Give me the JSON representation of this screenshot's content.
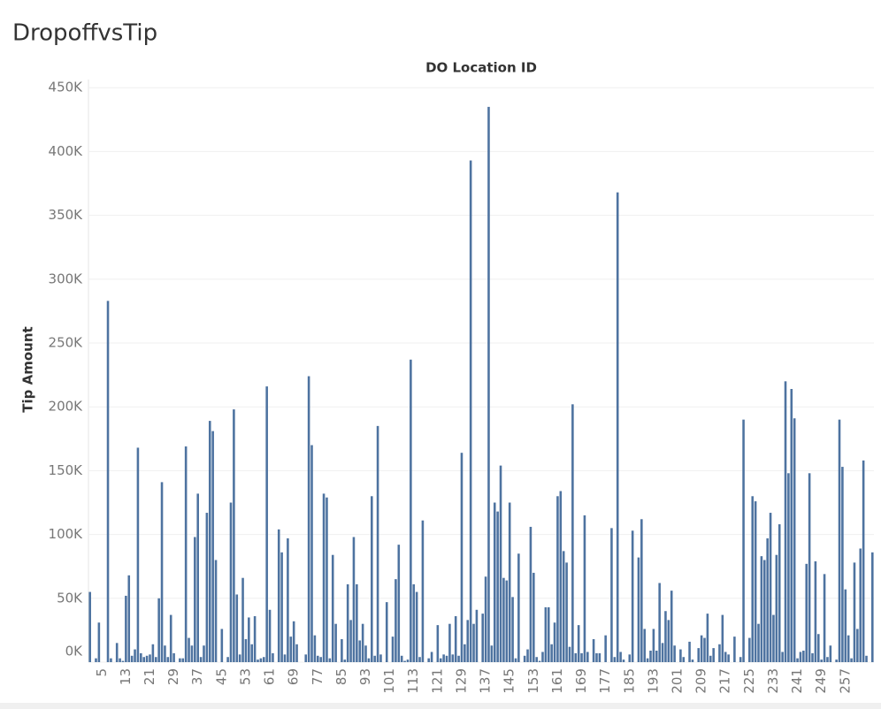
{
  "chart_data": {
    "type": "bar",
    "title": "DropoffvsTip",
    "x_label": "DO Location ID",
    "y_label": "Tip Amount",
    "color": "#4e73a0",
    "grid": true,
    "ylim": [
      0,
      455000
    ],
    "yticks": [
      {
        "value": 0,
        "label": "0K"
      },
      {
        "value": 50000,
        "label": "50K"
      },
      {
        "value": 100000,
        "label": "100K"
      },
      {
        "value": 150000,
        "label": "150K"
      },
      {
        "value": 200000,
        "label": "200K"
      },
      {
        "value": 250000,
        "label": "250K"
      },
      {
        "value": 300000,
        "label": "300K"
      },
      {
        "value": 350000,
        "label": "350K"
      },
      {
        "value": 400000,
        "label": "400K"
      },
      {
        "value": 450000,
        "label": "450K"
      }
    ],
    "categories": [
      null,
      null,
      null,
      null,
      "5",
      null,
      null,
      null,
      null,
      null,
      null,
      null,
      "13",
      null,
      null,
      null,
      null,
      null,
      null,
      null,
      "21",
      null,
      null,
      null,
      null,
      null,
      null,
      null,
      "29",
      null,
      null,
      null,
      null,
      null,
      null,
      null,
      "37",
      null,
      null,
      null,
      null,
      null,
      null,
      null,
      "45",
      null,
      null,
      null,
      null,
      null,
      null,
      null,
      "53",
      null,
      null,
      null,
      null,
      null,
      null,
      null,
      "61",
      null,
      null,
      null,
      null,
      null,
      null,
      null,
      "69",
      null,
      null,
      null,
      null,
      null,
      null,
      null,
      "77",
      null,
      null,
      null,
      null,
      null,
      null,
      null,
      "85",
      null,
      null,
      null,
      null,
      null,
      null,
      null,
      "93",
      null,
      null,
      null,
      null,
      null,
      null,
      null,
      "101",
      null,
      null,
      null,
      null,
      null,
      null,
      null,
      "113",
      null,
      null,
      null,
      null,
      null,
      null,
      null,
      "121",
      null,
      null,
      null,
      null,
      null,
      null,
      null,
      "129",
      null,
      null,
      null,
      null,
      null,
      null,
      null,
      "137",
      null,
      null,
      null,
      null,
      null,
      null,
      null,
      "145",
      null,
      null,
      null,
      null,
      null,
      null,
      null,
      "153",
      null,
      null,
      null,
      null,
      null,
      null,
      null,
      "161",
      null,
      null,
      null,
      null,
      null,
      null,
      null,
      "169",
      null,
      null,
      null,
      null,
      null,
      null,
      null,
      "177",
      null,
      null,
      null,
      null,
      null,
      null,
      null,
      "185",
      null,
      null,
      null,
      null,
      null,
      null,
      null,
      "193",
      null,
      null,
      null,
      null,
      null,
      null,
      null,
      "201",
      null,
      null,
      null,
      null,
      null,
      null,
      null,
      "209",
      null,
      null,
      null,
      null,
      null,
      null,
      null,
      "217",
      null,
      null,
      null,
      null,
      null,
      null,
      null,
      "225",
      null,
      null,
      null,
      null,
      null,
      null,
      null,
      "233",
      null,
      null,
      null,
      null,
      null,
      null,
      null,
      "241",
      null,
      null,
      null,
      null,
      null,
      null,
      null,
      "249",
      null,
      null,
      null,
      null,
      null,
      null,
      null,
      "257",
      null,
      null,
      null,
      null,
      null,
      null,
      null,
      null,
      null
    ],
    "values": [
      55000,
      null,
      3000,
      31000,
      null,
      null,
      283000,
      3000,
      null,
      15000,
      3000,
      1000,
      52000,
      68000,
      5000,
      10000,
      168000,
      7000,
      4000,
      5000,
      6000,
      14000,
      4000,
      50000,
      141000,
      13000,
      4000,
      37000,
      7000,
      null,
      3000,
      3000,
      169000,
      19000,
      13000,
      98000,
      132000,
      4000,
      13000,
      117000,
      189000,
      181000,
      80000,
      null,
      26000,
      null,
      4000,
      125000,
      198000,
      53000,
      6000,
      66000,
      18000,
      35000,
      14000,
      36000,
      2000,
      3000,
      4000,
      216000,
      41000,
      7000,
      null,
      104000,
      86000,
      6000,
      97000,
      20000,
      32000,
      14000,
      null,
      null,
      6000,
      224000,
      170000,
      21000,
      5000,
      4000,
      132000,
      129000,
      3000,
      84000,
      30000,
      null,
      18000,
      2000,
      61000,
      33000,
      98000,
      61000,
      17000,
      30000,
      13000,
      3000,
      130000,
      5000,
      185000,
      6000,
      null,
      47000,
      null,
      20000,
      65000,
      92000,
      5000,
      1000,
      2000,
      237000,
      61000,
      55000,
      4000,
      111000,
      null,
      3000,
      8000,
      null,
      29000,
      3000,
      6000,
      5000,
      30000,
      6000,
      36000,
      5000,
      164000,
      14000,
      33000,
      393000,
      30000,
      41000,
      null,
      38000,
      67000,
      435000,
      13000,
      125000,
      118000,
      154000,
      66000,
      64000,
      125000,
      51000,
      3000,
      85000,
      null,
      5000,
      10000,
      106000,
      70000,
      4000,
      1000,
      8000,
      43000,
      43000,
      14000,
      31000,
      130000,
      134000,
      87000,
      78000,
      12000,
      202000,
      7000,
      29000,
      7000,
      115000,
      8000,
      null,
      18000,
      7000,
      7000,
      null,
      21000,
      null,
      105000,
      4000,
      368000,
      8000,
      2000,
      null,
      6000,
      103000,
      null,
      82000,
      112000,
      26000,
      3000,
      9000,
      26000,
      9000,
      62000,
      15000,
      40000,
      33000,
      56000,
      13000,
      null,
      10000,
      4000,
      null,
      16000,
      2000,
      null,
      11000,
      21000,
      19000,
      38000,
      5000,
      11000,
      null,
      14000,
      37000,
      8000,
      6000,
      null,
      20000,
      null,
      4000,
      190000,
      null,
      19000,
      130000,
      126000,
      30000,
      83000,
      80000,
      97000,
      117000,
      37000,
      84000,
      108000,
      8000,
      220000,
      148000,
      214000,
      191000,
      3000,
      8000,
      9000,
      77000,
      148000,
      7000,
      79000,
      22000,
      2000,
      69000,
      4000,
      13000,
      null,
      2000,
      190000,
      153000,
      57000,
      21000,
      3000,
      78000,
      26000,
      89000,
      158000,
      5000,
      null,
      86000
    ]
  }
}
